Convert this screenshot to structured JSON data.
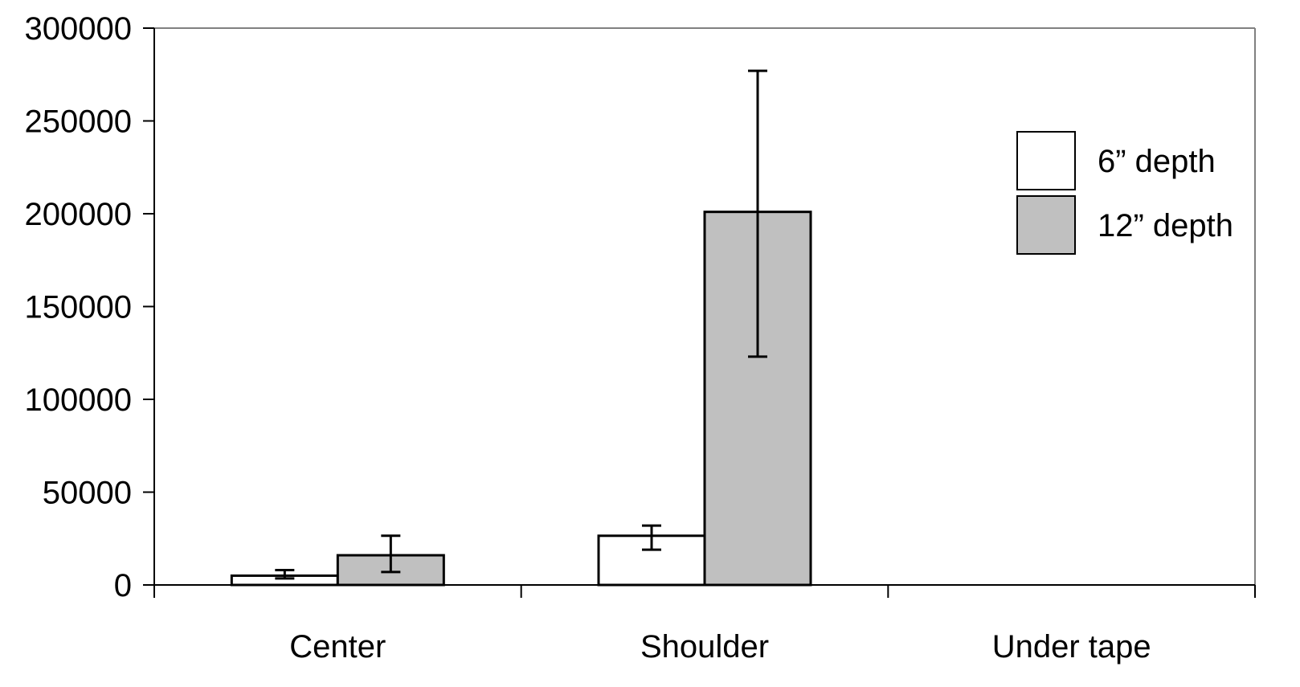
{
  "chart_data": {
    "type": "bar",
    "title": "",
    "xlabel": "",
    "ylabel": "",
    "categories": [
      "Center",
      "Shoulder",
      "Under tape"
    ],
    "ylim": [
      0,
      300000
    ],
    "yticks": [
      0,
      50000,
      100000,
      150000,
      200000,
      250000,
      300000
    ],
    "ytick_labels": [
      "0",
      "50000",
      "100000",
      "150000",
      "200000",
      "250000",
      "300000"
    ],
    "grid": false,
    "legend_position": "top-right",
    "series": [
      {
        "name": "6” depth",
        "color": "#ffffff",
        "values": [
          5000,
          26500,
          0
        ],
        "error_low": [
          3500,
          19000,
          null
        ],
        "error_high": [
          8000,
          32000,
          null
        ]
      },
      {
        "name": "12” depth",
        "color": "#c0c0c0",
        "values": [
          16000,
          201000,
          0
        ],
        "error_low": [
          7000,
          123000,
          null
        ],
        "error_high": [
          26500,
          277000,
          null
        ]
      }
    ]
  }
}
